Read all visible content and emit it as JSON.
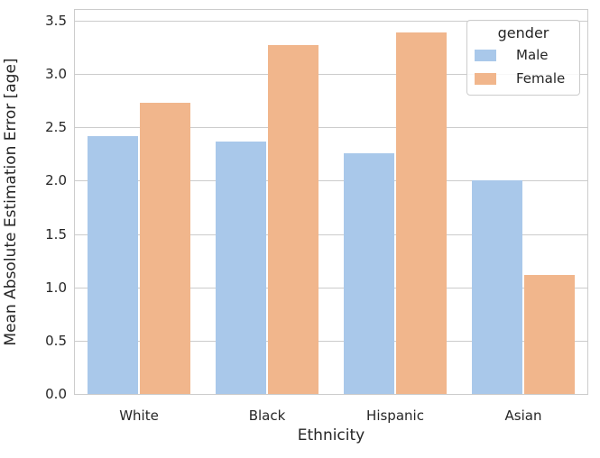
{
  "figure": {
    "background": "#ffffff",
    "text_color": "#262626",
    "grid_color": "#cccccc",
    "spine_color": "#cccccc"
  },
  "chart_data": {
    "type": "bar",
    "title": "",
    "xlabel": "Ethnicity",
    "ylabel": "Mean Absolute Estimation Error [age]",
    "categories": [
      "White",
      "Black",
      "Hispanic",
      "Asian"
    ],
    "series": [
      {
        "name": "Male",
        "color": "#a9c8ea",
        "values": [
          2.42,
          2.37,
          2.26,
          2.0
        ]
      },
      {
        "name": "Female",
        "color": "#f1b68c",
        "values": [
          2.73,
          3.27,
          3.39,
          1.12
        ]
      }
    ],
    "ylim": [
      0,
      3.6
    ],
    "yticks": [
      0.0,
      0.5,
      1.0,
      1.5,
      2.0,
      2.5,
      3.0,
      3.5
    ],
    "ytick_format_decimals": 1,
    "grid": "horizontal",
    "legend": {
      "title": "gender",
      "position": "upper right"
    }
  }
}
